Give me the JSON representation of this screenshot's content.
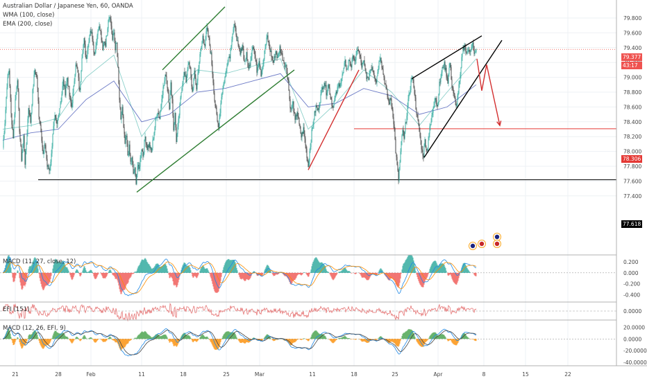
{
  "header": {
    "title": "Australian Dollar / Japanese Yen, 60, OANDA",
    "wma_label": "WMA (100, close)",
    "ema_label": "EMA (200, close)"
  },
  "panels": {
    "macd1_label": "MACD (11, 27, close, 12)",
    "efi_label": "EFI (151)",
    "macd2_label": "MACD (12, 26, EFI, 9)"
  },
  "price_tags": {
    "last_price": "79.377",
    "countdown": "43:17",
    "resistance": "78.306",
    "support": "77.618"
  },
  "chart_data": {
    "type": "candlestick",
    "symbol": "AUDJPY",
    "timeframe": "60",
    "main_axis": {
      "ticks": [
        "79.800",
        "79.600",
        "79.400",
        "79.200",
        "79.000",
        "78.800",
        "78.600",
        "78.400",
        "78.200",
        "78.000",
        "77.800",
        "77.600",
        "77.400"
      ],
      "range": [
        77.35,
        79.95
      ]
    },
    "x_ticks": [
      "21",
      "28",
      "Feb",
      "11",
      "18",
      "25",
      "Mar",
      "11",
      "18",
      "25",
      "Apr",
      "8",
      "15",
      "22"
    ],
    "horizontal_levels": [
      {
        "value": 79.377,
        "color": "#f44336",
        "style": "dotted"
      },
      {
        "value": 78.306,
        "color": "#e53935",
        "style": "solid"
      },
      {
        "value": 77.618,
        "color": "#000000",
        "style": "solid"
      }
    ],
    "macd1_axis": {
      "ticks": [
        "0.200",
        "0.000",
        "-0.200",
        "-0.400"
      ],
      "range": [
        -0.48,
        0.3
      ]
    },
    "efi_axis": {
      "ticks": [
        "0.0000"
      ]
    },
    "macd2_axis": {
      "ticks": [
        "20.0000",
        "0.0000",
        "-20.0000",
        "-40.0000"
      ],
      "range": [
        -46,
        30
      ]
    },
    "price_path": [
      [
        0,
        78.05
      ],
      [
        3,
        78.4
      ],
      [
        6,
        78.9
      ],
      [
        9,
        79.1
      ],
      [
        12,
        78.5
      ],
      [
        15,
        78.2
      ],
      [
        18,
        78.7
      ],
      [
        21,
        79.0
      ],
      [
        24,
        78.3
      ],
      [
        27,
        77.9
      ],
      [
        30,
        78.2
      ],
      [
        32,
        77.85
      ],
      [
        34,
        78.1
      ],
      [
        37,
        78.6
      ],
      [
        40,
        78.4
      ],
      [
        43,
        78.8
      ],
      [
        46,
        79.1
      ],
      [
        49,
        79.0
      ],
      [
        52,
        78.5
      ],
      [
        55,
        78.3
      ],
      [
        58,
        77.95
      ],
      [
        61,
        78.1
      ],
      [
        64,
        77.8
      ],
      [
        67,
        77.75
      ],
      [
        70,
        77.95
      ],
      [
        72,
        78.25
      ],
      [
        75,
        78.45
      ],
      [
        78,
        78.35
      ],
      [
        81,
        78.55
      ],
      [
        84,
        78.7
      ],
      [
        87,
        78.95
      ],
      [
        90,
        78.8
      ],
      [
        93,
        79.0
      ],
      [
        96,
        78.75
      ],
      [
        99,
        78.6
      ],
      [
        102,
        78.85
      ],
      [
        105,
        79.2
      ],
      [
        108,
        79.05
      ],
      [
        111,
        78.8
      ],
      [
        114,
        79.3
      ],
      [
        117,
        79.5
      ],
      [
        120,
        79.25
      ],
      [
        123,
        79.45
      ],
      [
        126,
        79.65
      ],
      [
        129,
        79.55
      ],
      [
        132,
        79.3
      ],
      [
        135,
        79.5
      ],
      [
        138,
        79.7
      ],
      [
        141,
        79.6
      ],
      [
        144,
        79.35
      ],
      [
        146,
        79.5
      ],
      [
        148,
        79.45
      ],
      [
        150,
        79.6
      ],
      [
        152,
        79.8
      ],
      [
        154,
        79.85
      ],
      [
        156,
        79.7
      ],
      [
        158,
        79.5
      ],
      [
        160,
        79.6
      ],
      [
        162,
        79.4
      ],
      [
        164,
        79.45
      ],
      [
        166,
        79.1
      ],
      [
        168,
        78.7
      ],
      [
        170,
        78.4
      ],
      [
        172,
        78.6
      ],
      [
        174,
        78.3
      ],
      [
        176,
        78.1
      ],
      [
        178,
        78.2
      ],
      [
        180,
        77.95
      ],
      [
        182,
        78.05
      ],
      [
        184,
        77.85
      ],
      [
        186,
        77.9
      ],
      [
        188,
        77.7
      ],
      [
        190,
        77.75
      ],
      [
        192,
        77.6
      ],
      [
        194,
        77.8
      ],
      [
        196,
        77.75
      ],
      [
        198,
        77.9
      ],
      [
        200,
        78.05
      ],
      [
        202,
        77.95
      ],
      [
        205,
        78.2
      ],
      [
        208,
        78.05
      ],
      [
        211,
        78.1
      ],
      [
        214,
        77.98
      ],
      [
        217,
        78.2
      ],
      [
        220,
        78.4
      ],
      [
        223,
        78.55
      ],
      [
        226,
        78.45
      ],
      [
        229,
        78.75
      ],
      [
        232,
        78.9
      ],
      [
        235,
        79.05
      ],
      [
        238,
        78.8
      ],
      [
        240,
        78.6
      ],
      [
        242,
        78.9
      ],
      [
        244,
        78.7
      ],
      [
        246,
        78.3
      ],
      [
        248,
        78.5
      ],
      [
        250,
        78.15
      ],
      [
        252,
        78.3
      ],
      [
        254,
        78.5
      ],
      [
        256,
        78.7
      ],
      [
        258,
        78.9
      ],
      [
        261,
        79.05
      ],
      [
        264,
        78.95
      ],
      [
        267,
        79.2
      ],
      [
        270,
        79.1
      ],
      [
        273,
        78.8
      ],
      [
        276,
        79.05
      ],
      [
        279,
        78.85
      ],
      [
        282,
        79.15
      ],
      [
        285,
        79.35
      ],
      [
        288,
        79.55
      ],
      [
        291,
        79.45
      ],
      [
        294,
        79.65
      ],
      [
        297,
        79.5
      ],
      [
        300,
        79.3
      ],
      [
        303,
        78.95
      ],
      [
        305,
        78.7
      ],
      [
        307,
        78.55
      ],
      [
        309,
        78.4
      ],
      [
        311,
        78.35
      ],
      [
        313,
        78.55
      ],
      [
        315,
        78.75
      ],
      [
        318,
        78.9
      ],
      [
        321,
        79.05
      ],
      [
        324,
        79.25
      ],
      [
        327,
        79.3
      ],
      [
        330,
        79.55
      ],
      [
        333,
        79.7
      ],
      [
        336,
        79.6
      ],
      [
        339,
        79.4
      ],
      [
        342,
        79.3
      ],
      [
        345,
        79.45
      ],
      [
        348,
        79.2
      ],
      [
        351,
        79.3
      ],
      [
        354,
        79.1
      ],
      [
        357,
        79.25
      ],
      [
        360,
        79.45
      ],
      [
        363,
        79.3
      ],
      [
        366,
        79.1
      ],
      [
        369,
        79.25
      ],
      [
        372,
        79.05
      ],
      [
        375,
        79.2
      ],
      [
        378,
        79.4
      ],
      [
        381,
        79.55
      ],
      [
        384,
        79.4
      ],
      [
        387,
        79.3
      ],
      [
        390,
        79.2
      ],
      [
        393,
        79.35
      ],
      [
        396,
        79.25
      ],
      [
        399,
        79.4
      ],
      [
        402,
        79.3
      ],
      [
        405,
        79.2
      ],
      [
        408,
        79.15
      ],
      [
        411,
        78.95
      ],
      [
        413,
        78.7
      ],
      [
        415,
        78.55
      ],
      [
        418,
        78.65
      ],
      [
        421,
        78.4
      ],
      [
        424,
        78.55
      ],
      [
        427,
        78.35
      ],
      [
        430,
        78.2
      ],
      [
        433,
        78.3
      ],
      [
        436,
        78.1
      ],
      [
        438,
        77.95
      ],
      [
        440,
        77.8
      ],
      [
        442,
        78.0
      ],
      [
        445,
        78.25
      ],
      [
        448,
        78.45
      ],
      [
        451,
        78.6
      ],
      [
        454,
        78.55
      ],
      [
        457,
        78.7
      ],
      [
        460,
        78.85
      ],
      [
        463,
        78.95
      ],
      [
        466,
        78.8
      ],
      [
        469,
        78.9
      ],
      [
        472,
        78.75
      ],
      [
        475,
        78.6
      ],
      [
        478,
        78.7
      ],
      [
        481,
        78.8
      ],
      [
        484,
        78.9
      ],
      [
        487,
        78.95
      ],
      [
        490,
        79.05
      ],
      [
        493,
        79.2
      ],
      [
        496,
        79.1
      ],
      [
        499,
        79.25
      ],
      [
        502,
        79.15
      ],
      [
        505,
        79.3
      ],
      [
        508,
        79.2
      ],
      [
        511,
        79.4
      ],
      [
        514,
        79.3
      ],
      [
        517,
        79.15
      ],
      [
        520,
        79.2
      ],
      [
        523,
        79.05
      ],
      [
        526,
        78.95
      ],
      [
        529,
        79.1
      ],
      [
        532,
        79.15
      ],
      [
        535,
        79.05
      ],
      [
        538,
        78.95
      ],
      [
        541,
        79.15
      ],
      [
        544,
        79.3
      ],
      [
        547,
        79.1
      ],
      [
        550,
        78.95
      ],
      [
        553,
        78.8
      ],
      [
        556,
        78.65
      ],
      [
        559,
        78.7
      ],
      [
        562,
        78.5
      ],
      [
        564,
        78.3
      ],
      [
        566,
        78.0
      ],
      [
        568,
        77.8
      ],
      [
        570,
        77.62
      ],
      [
        572,
        77.85
      ],
      [
        574,
        78.1
      ],
      [
        576,
        78.3
      ],
      [
        578,
        78.15
      ],
      [
        580,
        78.35
      ],
      [
        583,
        78.6
      ],
      [
        586,
        78.8
      ],
      [
        589,
        79.0
      ],
      [
        592,
        78.9
      ],
      [
        595,
        78.6
      ],
      [
        598,
        78.4
      ],
      [
        601,
        78.2
      ],
      [
        604,
        78.0
      ],
      [
        606,
        77.95
      ],
      [
        608,
        78.15
      ],
      [
        611,
        78.0
      ],
      [
        614,
        78.25
      ],
      [
        617,
        78.4
      ],
      [
        620,
        78.6
      ],
      [
        623,
        78.75
      ],
      [
        626,
        78.6
      ],
      [
        629,
        78.9
      ],
      [
        632,
        79.05
      ],
      [
        635,
        79.2
      ],
      [
        638,
        79.1
      ],
      [
        641,
        78.95
      ],
      [
        644,
        79.2
      ],
      [
        647,
        78.9
      ],
      [
        650,
        78.75
      ],
      [
        653,
        78.6
      ],
      [
        656,
        78.8
      ],
      [
        659,
        79.0
      ],
      [
        662,
        79.35
      ],
      [
        665,
        79.45
      ],
      [
        668,
        79.3
      ],
      [
        671,
        79.4
      ],
      [
        674,
        79.35
      ],
      [
        677,
        79.45
      ],
      [
        680,
        79.3
      ],
      [
        682,
        79.38
      ]
    ],
    "wma_path": [
      [
        0,
        78.3
      ],
      [
        40,
        78.35
      ],
      [
        80,
        78.45
      ],
      [
        120,
        79.0
      ],
      [
        160,
        79.3
      ],
      [
        200,
        78.2
      ],
      [
        240,
        78.7
      ],
      [
        280,
        79.1
      ],
      [
        320,
        79.05
      ],
      [
        360,
        79.15
      ],
      [
        400,
        79.25
      ],
      [
        440,
        78.3
      ],
      [
        480,
        78.65
      ],
      [
        520,
        79.1
      ],
      [
        560,
        78.8
      ],
      [
        600,
        78.35
      ],
      [
        640,
        78.8
      ],
      [
        682,
        79.25
      ]
    ],
    "ema_path": [
      [
        0,
        78.15
      ],
      [
        40,
        78.25
      ],
      [
        80,
        78.3
      ],
      [
        120,
        78.7
      ],
      [
        160,
        78.95
      ],
      [
        200,
        78.4
      ],
      [
        240,
        78.5
      ],
      [
        280,
        78.8
      ],
      [
        320,
        78.85
      ],
      [
        360,
        78.95
      ],
      [
        400,
        79.05
      ],
      [
        440,
        78.6
      ],
      [
        480,
        78.65
      ],
      [
        520,
        78.85
      ],
      [
        560,
        78.75
      ],
      [
        600,
        78.5
      ],
      [
        640,
        78.6
      ],
      [
        682,
        78.9
      ]
    ],
    "drawings": [
      {
        "kind": "trendline",
        "color": "#2e7d32",
        "points": [
          [
            230,
            79.1
          ],
          [
            320,
            79.95
          ]
        ]
      },
      {
        "kind": "trendline",
        "color": "#2e7d32",
        "points": [
          [
            193,
            77.45
          ],
          [
            420,
            79.1
          ]
        ]
      },
      {
        "kind": "trendline",
        "color": "#d32f2f",
        "points": [
          [
            440,
            77.75
          ],
          [
            513,
            79.1
          ]
        ]
      },
      {
        "kind": "trendline",
        "color": "#000000",
        "points": [
          [
            589,
            78.98
          ],
          [
            690,
            79.56
          ]
        ]
      },
      {
        "kind": "trendline",
        "color": "#000000",
        "points": [
          [
            607,
            77.92
          ],
          [
            719,
            79.5
          ]
        ]
      },
      {
        "kind": "arrow",
        "color": "#d32f2f",
        "points": [
          [
            683,
            79.25
          ],
          [
            690,
            78.82
          ],
          [
            697,
            79.17
          ],
          [
            716,
            78.35
          ]
        ]
      }
    ]
  }
}
